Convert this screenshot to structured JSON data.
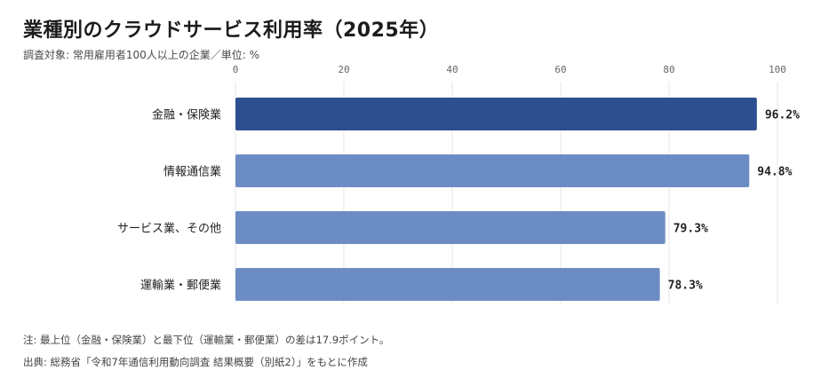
{
  "header": {
    "title": "業種別のクラウドサービス利用率（2025年）",
    "subtitle": "調査対象: 常用雇用者100人以上の企業／単位: %"
  },
  "chart_data": {
    "type": "bar",
    "orientation": "horizontal",
    "categories": [
      "金融・保険業",
      "情報通信業",
      "サービス業、その他",
      "運輸業・郵便業"
    ],
    "values": [
      96.2,
      94.8,
      79.3,
      78.3
    ],
    "value_labels": [
      "96.2%",
      "94.8%",
      "79.3%",
      "78.3%"
    ],
    "xlim": [
      0,
      100
    ],
    "xticks": [
      0,
      20,
      40,
      60,
      80,
      100
    ],
    "grid": true,
    "colors": {
      "highlight": "#2e4f8f",
      "default": "#6c8dc4",
      "grid": "#e6e6e6"
    },
    "highlight_index": 0
  },
  "footer": {
    "note": "注: 最上位（金融・保険業）と最下位（運輸業・郵便業）の差は17.9ポイント。",
    "source": "出典: 総務省「令和7年通信利用動向調査 結果概要（別紙2）」をもとに作成"
  }
}
